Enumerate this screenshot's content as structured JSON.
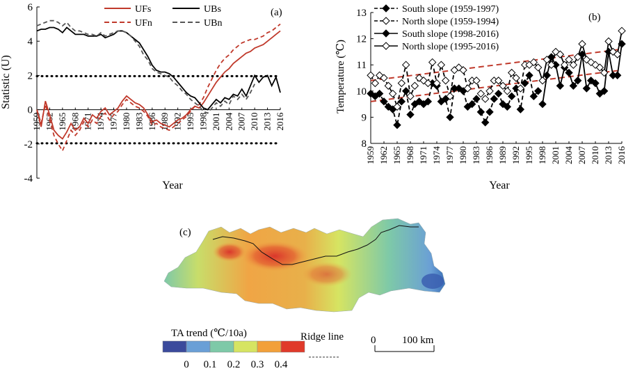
{
  "chart_data": [
    {
      "type": "line",
      "panel_label": "(a)",
      "xlabel": "Year",
      "ylabel": "Statistic (U)",
      "ylim": [
        -4,
        6
      ],
      "xlim": [
        1959,
        2016
      ],
      "yticks": [
        -4,
        -2,
        0,
        2,
        4,
        6
      ],
      "xticks": [
        1959,
        1962,
        1965,
        1968,
        1971,
        1974,
        1977,
        1980,
        1983,
        1986,
        1989,
        1992,
        1995,
        1998,
        2001,
        2004,
        2007,
        2010,
        2013,
        2016
      ],
      "reference_lines": [
        1.96,
        -1.96
      ],
      "legend": "top",
      "series": [
        {
          "name": "UFs",
          "color": "#c0392b",
          "dash": "solid",
          "x": [
            1959,
            1960,
            1961,
            1962,
            1963,
            1964,
            1965,
            1966,
            1967,
            1968,
            1969,
            1970,
            1971,
            1972,
            1973,
            1974,
            1975,
            1976,
            1977,
            1978,
            1979,
            1980,
            1981,
            1982,
            1983,
            1984,
            1985,
            1986,
            1987,
            1988,
            1989,
            1990,
            1991,
            1992,
            1993,
            1994,
            1995,
            1996,
            1997,
            1998,
            1999,
            2000,
            2001,
            2002,
            2003,
            2004,
            2005,
            2006,
            2007,
            2008,
            2009,
            2010,
            2011,
            2012,
            2013,
            2014,
            2015,
            2016
          ],
          "y": [
            0,
            -1.0,
            0.5,
            -0.3,
            -1.2,
            -1.5,
            -1.7,
            -1.3,
            -0.8,
            -1.2,
            -1.0,
            -0.5,
            -0.8,
            -0.3,
            -0.5,
            -0.1,
            0.1,
            -0.3,
            -0.1,
            0.1,
            0.5,
            0.8,
            0.6,
            0.4,
            0.3,
            0.1,
            -0.3,
            -0.7,
            -0.6,
            -0.8,
            -0.9,
            -1.0,
            -0.8,
            -0.6,
            -0.5,
            -0.3,
            0.0,
            0.2,
            0.1,
            0.4,
            0.8,
            1.2,
            1.6,
            1.9,
            2.2,
            2.4,
            2.7,
            2.9,
            3.1,
            3.3,
            3.4,
            3.6,
            3.7,
            3.8,
            4.0,
            4.2,
            4.4,
            4.6
          ]
        },
        {
          "name": "UFn",
          "color": "#c0392b",
          "dash": "dashed",
          "x": [
            1959,
            1960,
            1961,
            1962,
            1963,
            1964,
            1965,
            1966,
            1967,
            1968,
            1969,
            1970,
            1971,
            1972,
            1973,
            1974,
            1975,
            1976,
            1977,
            1978,
            1979,
            1980,
            1981,
            1982,
            1983,
            1984,
            1985,
            1986,
            1987,
            1988,
            1989,
            1990,
            1991,
            1992,
            1993,
            1994,
            1995,
            1996,
            1997,
            1998,
            1999,
            2000,
            2001,
            2002,
            2003,
            2004,
            2005,
            2006,
            2007,
            2008,
            2009,
            2010,
            2011,
            2012,
            2013,
            2014,
            2015,
            2016
          ],
          "y": [
            0,
            -0.8,
            0.3,
            -0.6,
            -1.5,
            -2.0,
            -2.4,
            -1.8,
            -1.2,
            -1.5,
            -1.2,
            -0.7,
            -1.0,
            -0.6,
            -0.8,
            -0.4,
            -0.2,
            -0.6,
            -0.3,
            -0.1,
            0.3,
            0.6,
            0.4,
            0.2,
            0.1,
            -0.1,
            -0.4,
            -0.9,
            -0.8,
            -1.0,
            -1.1,
            -1.2,
            -1.0,
            -0.8,
            -0.6,
            -0.4,
            -0.1,
            0.2,
            0.3,
            0.7,
            1.3,
            1.8,
            2.3,
            2.7,
            3.0,
            3.2,
            3.5,
            3.7,
            3.9,
            4.0,
            4.1,
            4.1,
            4.2,
            4.3,
            4.5,
            4.6,
            4.8,
            5.0
          ]
        },
        {
          "name": "UBs",
          "color": "#000000",
          "dash": "solid",
          "x": [
            1959,
            1960,
            1961,
            1962,
            1963,
            1964,
            1965,
            1966,
            1967,
            1968,
            1969,
            1970,
            1971,
            1972,
            1973,
            1974,
            1975,
            1976,
            1977,
            1978,
            1979,
            1980,
            1981,
            1982,
            1983,
            1984,
            1985,
            1986,
            1987,
            1988,
            1989,
            1990,
            1991,
            1992,
            1993,
            1994,
            1995,
            1996,
            1997,
            1998,
            1999,
            2000,
            2001,
            2002,
            2003,
            2004,
            2005,
            2006,
            2007,
            2008,
            2009,
            2010,
            2011,
            2012,
            2013,
            2014,
            2015,
            2016
          ],
          "y": [
            4.6,
            4.7,
            4.7,
            4.8,
            4.8,
            4.7,
            4.5,
            4.8,
            4.6,
            4.4,
            4.4,
            4.4,
            4.3,
            4.3,
            4.3,
            4.4,
            4.2,
            4.3,
            4.4,
            4.6,
            4.6,
            4.5,
            4.3,
            4.1,
            3.9,
            3.5,
            3.1,
            2.6,
            2.3,
            2.2,
            2.2,
            2.1,
            1.9,
            1.6,
            1.3,
            1.0,
            0.8,
            0.7,
            0.4,
            0.1,
            0.0,
            0.3,
            0.6,
            0.4,
            0.7,
            0.6,
            0.9,
            0.8,
            1.2,
            0.8,
            1.4,
            2.0,
            1.6,
            1.9,
            2.0,
            1.4,
            1.9,
            1.0
          ]
        },
        {
          "name": "UBn",
          "color": "#555555",
          "dash": "dashed",
          "x": [
            1959,
            1960,
            1961,
            1962,
            1963,
            1964,
            1965,
            1966,
            1967,
            1968,
            1969,
            1970,
            1971,
            1972,
            1973,
            1974,
            1975,
            1976,
            1977,
            1978,
            1979,
            1980,
            1981,
            1982,
            1983,
            1984,
            1985,
            1986,
            1987,
            1988,
            1989,
            1990,
            1991,
            1992,
            1993,
            1994,
            1995,
            1996,
            1997,
            1998,
            1999,
            2000,
            2001,
            2002,
            2003,
            2004,
            2005,
            2006,
            2007,
            2008,
            2009,
            2010
          ],
          "y": [
            4.9,
            5.0,
            5.1,
            5.2,
            5.2,
            5.1,
            4.9,
            5.1,
            4.8,
            4.6,
            4.6,
            4.5,
            4.4,
            4.4,
            4.3,
            4.5,
            4.3,
            4.4,
            4.5,
            4.6,
            4.6,
            4.5,
            4.3,
            4.0,
            3.7,
            3.2,
            2.9,
            2.4,
            2.2,
            2.1,
            2.0,
            1.9,
            1.6,
            1.4,
            1.1,
            0.9,
            0.6,
            0.4,
            0.2,
            -0.1,
            -0.2,
            0.1,
            0.4,
            0.2,
            0.5,
            0.3,
            0.8,
            0.6,
            0.9,
            0.6,
            1.0,
            1.5
          ]
        }
      ]
    },
    {
      "type": "line",
      "panel_label": "(b)",
      "xlabel": "Year",
      "ylabel": "Temperature (℃)",
      "ylim": [
        8,
        13
      ],
      "xlim": [
        1959,
        2016
      ],
      "yticks": [
        8,
        9,
        10,
        11,
        12,
        13
      ],
      "xticks": [
        1959,
        1962,
        1965,
        1968,
        1971,
        1974,
        1977,
        1980,
        1983,
        1986,
        1989,
        1992,
        1995,
        1998,
        2001,
        2004,
        2007,
        2010,
        2013,
        2016
      ],
      "legend": "top-left",
      "series": [
        {
          "name": "South slope (1959-1997)",
          "color": "#000000",
          "dash": "dashed",
          "marker": "filled-diamond",
          "x": [
            1959,
            1960,
            1961,
            1962,
            1963,
            1964,
            1965,
            1966,
            1967,
            1968,
            1969,
            1970,
            1971,
            1972,
            1973,
            1974,
            1975,
            1976,
            1977,
            1978,
            1979,
            1980,
            1981,
            1982,
            1983,
            1984,
            1985,
            1986,
            1987,
            1988,
            1989,
            1990,
            1991,
            1992,
            1993,
            1994,
            1995,
            1996,
            1997
          ],
          "y": [
            9.9,
            9.8,
            9.9,
            9.6,
            9.4,
            9.3,
            8.7,
            9.6,
            10.0,
            9.1,
            9.5,
            9.6,
            9.5,
            9.6,
            10.3,
            10.2,
            9.6,
            9.7,
            9.0,
            10.1,
            10.1,
            10.0,
            9.4,
            9.5,
            9.7,
            9.2,
            8.8,
            9.2,
            9.7,
            9.9,
            9.5,
            9.4,
            9.8,
            10.1,
            9.3,
            10.3,
            10.6,
            9.8,
            10.0
          ]
        },
        {
          "name": "North slope (1959-1994)",
          "color": "#000000",
          "dash": "dashed",
          "marker": "open-diamond",
          "x": [
            1959,
            1960,
            1961,
            1962,
            1963,
            1964,
            1965,
            1966,
            1967,
            1968,
            1969,
            1970,
            1971,
            1972,
            1973,
            1974,
            1975,
            1976,
            1977,
            1978,
            1979,
            1980,
            1981,
            1982,
            1983,
            1984,
            1985,
            1986,
            1987,
            1988,
            1989,
            1990,
            1991,
            1992,
            1993,
            1994
          ],
          "y": [
            10.6,
            10.3,
            10.6,
            10.5,
            10.2,
            9.9,
            9.4,
            10.3,
            11.0,
            9.8,
            10.2,
            10.5,
            10.4,
            10.3,
            11.1,
            10.3,
            11.0,
            10.4,
            9.8,
            10.8,
            10.9,
            10.8,
            10.1,
            10.4,
            10.4,
            9.9,
            9.7,
            10.0,
            10.4,
            10.4,
            10.2,
            10.0,
            10.7,
            10.5,
            10.1,
            11.0
          ]
        },
        {
          "name": "South slope (1998-2016)",
          "color": "#000000",
          "dash": "solid",
          "marker": "filled-diamond",
          "x": [
            1998,
            1999,
            2000,
            2001,
            2002,
            2003,
            2004,
            2005,
            2006,
            2007,
            2008,
            2009,
            2010,
            2011,
            2012,
            2013,
            2014,
            2015,
            2016
          ],
          "y": [
            9.5,
            10.6,
            11.3,
            11.0,
            10.2,
            10.9,
            10.7,
            10.2,
            10.4,
            11.4,
            10.1,
            10.4,
            10.3,
            9.9,
            10.0,
            11.5,
            10.6,
            10.6,
            11.8
          ]
        },
        {
          "name": "North slope (1995-2016)",
          "color": "#000000",
          "dash": "solid",
          "marker": "open-diamond",
          "x": [
            1995,
            1996,
            1997,
            1998,
            1999,
            2000,
            2001,
            2002,
            2003,
            2004,
            2005,
            2006,
            2007,
            2008,
            2009,
            2010,
            2011,
            2012,
            2013,
            2014,
            2015,
            2016
          ],
          "y": [
            11.0,
            11.1,
            10.9,
            10.4,
            11.2,
            11.0,
            11.5,
            11.4,
            11.0,
            11.2,
            11.0,
            11.3,
            11.8,
            11.2,
            11.1,
            11.0,
            10.9,
            10.7,
            11.9,
            11.5,
            11.4,
            12.3
          ]
        }
      ],
      "trend_lines": [
        {
          "color": "#c0392b",
          "x": [
            1959,
            2016
          ],
          "y": [
            9.6,
            10.8
          ]
        },
        {
          "color": "#c0392b",
          "x": [
            1959,
            2016
          ],
          "y": [
            10.4,
            11.6
          ]
        }
      ]
    }
  ],
  "map": {
    "panel_label": "(c)",
    "legend_title": "TA trend (℃/10a)",
    "scale_ticks": [
      "0",
      "0.1",
      "0.2",
      "0.3",
      "0.4"
    ],
    "scale_colors": [
      "#3b4a9c",
      "#6a9fd6",
      "#7ec9a8",
      "#d6e462",
      "#f2a03a",
      "#e03a2a"
    ],
    "ridge_label": "Ridge line",
    "scalebar_left": "0",
    "scalebar_right": "100 km"
  }
}
